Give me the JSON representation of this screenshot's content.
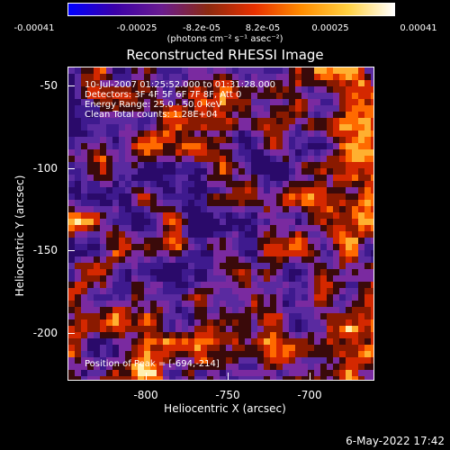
{
  "colorbar": {
    "ticks": [
      "-0.00041",
      "-0.00025",
      "-8.2e-05",
      "8.2e-05",
      "0.00025",
      "0.00041"
    ],
    "unit": "(photons cm⁻² s⁻¹ asec⁻²)",
    "colors": [
      "#0000ff",
      "#3b00a8",
      "#6a1c90",
      "#8c2a10",
      "#e83000",
      "#ff8c00",
      "#ffd040",
      "#ffffff"
    ]
  },
  "title": "Reconstructed RHESSI Image",
  "info": {
    "line1": "10-Jul-2007 01:25:52.000 to 01:31:28.000",
    "line2": "Detectors: 3F 4F 5F 6F 7F 8F, Att 0",
    "line3": "Energy Range: 25.0 - 50.0 keV",
    "line4": "Clean    Total counts: 1.28E+04"
  },
  "peak": "Position of Peak = [-694,-214]",
  "axes": {
    "xlabel": "Heliocentric X (arcsec)",
    "ylabel": "Heliocentric Y (arcsec)",
    "xticks": [
      "-800",
      "-750",
      "-700"
    ],
    "yticks": [
      "-50",
      "-100",
      "-150",
      "-200"
    ]
  },
  "timestamp": "6-May-2022 17:42"
}
